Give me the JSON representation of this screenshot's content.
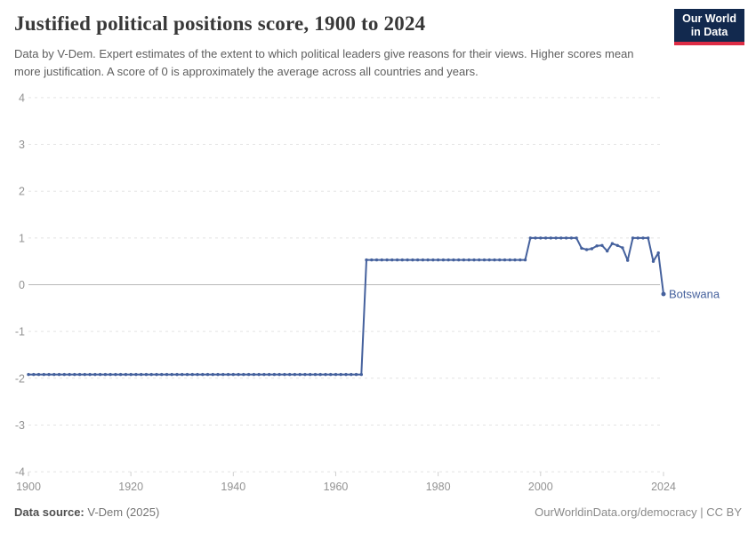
{
  "header": {
    "title": "Justified political positions score, 1900 to 2024",
    "subtitle": "Data by V-Dem. Expert estimates of the extent to which political leaders give reasons for their views. Higher scores mean more justification. A score of 0 is approximately the average across all countries and years.",
    "logo": {
      "line1": "Our World",
      "line2": "in Data",
      "bg_color": "#12294e",
      "accent_color": "#dd2c45"
    }
  },
  "footer": {
    "source_label": "Data source:",
    "source_value": " V-Dem (2025)",
    "credit": "OurWorldinData.org/democracy | CC BY"
  },
  "chart_data": {
    "type": "line",
    "title": "Justified political positions score, 1900 to 2024",
    "entity": "Botswana",
    "line_color": "#45619d",
    "grid": true,
    "x_start": 1900,
    "x_end": 2024,
    "xticks": [
      1900,
      1920,
      1940,
      1960,
      1980,
      2000,
      2024
    ],
    "yticks": [
      -4,
      -3,
      -2,
      -1,
      0,
      1,
      2,
      3,
      4
    ],
    "ylim": [
      -4,
      4
    ],
    "colors": {
      "gridline": "#e3e3e3",
      "zero_line": "#b8b8b8",
      "tick_label": "#929292",
      "tick_mark": "#cfcfcf"
    },
    "values": [
      -1.92,
      -1.92,
      -1.92,
      -1.92,
      -1.92,
      -1.92,
      -1.92,
      -1.92,
      -1.92,
      -1.92,
      -1.92,
      -1.92,
      -1.92,
      -1.92,
      -1.92,
      -1.92,
      -1.92,
      -1.92,
      -1.92,
      -1.92,
      -1.92,
      -1.92,
      -1.92,
      -1.92,
      -1.92,
      -1.92,
      -1.92,
      -1.92,
      -1.92,
      -1.92,
      -1.92,
      -1.92,
      -1.92,
      -1.92,
      -1.92,
      -1.92,
      -1.92,
      -1.92,
      -1.92,
      -1.92,
      -1.92,
      -1.92,
      -1.92,
      -1.92,
      -1.92,
      -1.92,
      -1.92,
      -1.92,
      -1.92,
      -1.92,
      -1.92,
      -1.92,
      -1.92,
      -1.92,
      -1.92,
      -1.92,
      -1.92,
      -1.92,
      -1.92,
      -1.92,
      -1.92,
      -1.92,
      -1.92,
      -1.92,
      -1.92,
      -1.92,
      0.53,
      0.53,
      0.53,
      0.53,
      0.53,
      0.53,
      0.53,
      0.53,
      0.53,
      0.53,
      0.53,
      0.53,
      0.53,
      0.53,
      0.53,
      0.53,
      0.53,
      0.53,
      0.53,
      0.53,
      0.53,
      0.53,
      0.53,
      0.53,
      0.53,
      0.53,
      0.53,
      0.53,
      0.53,
      0.53,
      0.53,
      0.53,
      1,
      1,
      1,
      1,
      1,
      1,
      1,
      1,
      1,
      1,
      0.78,
      0.75,
      0.77,
      0.83,
      0.84,
      0.72,
      0.88,
      0.84,
      0.79,
      0.52,
      1,
      1,
      1,
      1,
      0.5,
      0.68,
      -0.2
    ]
  }
}
